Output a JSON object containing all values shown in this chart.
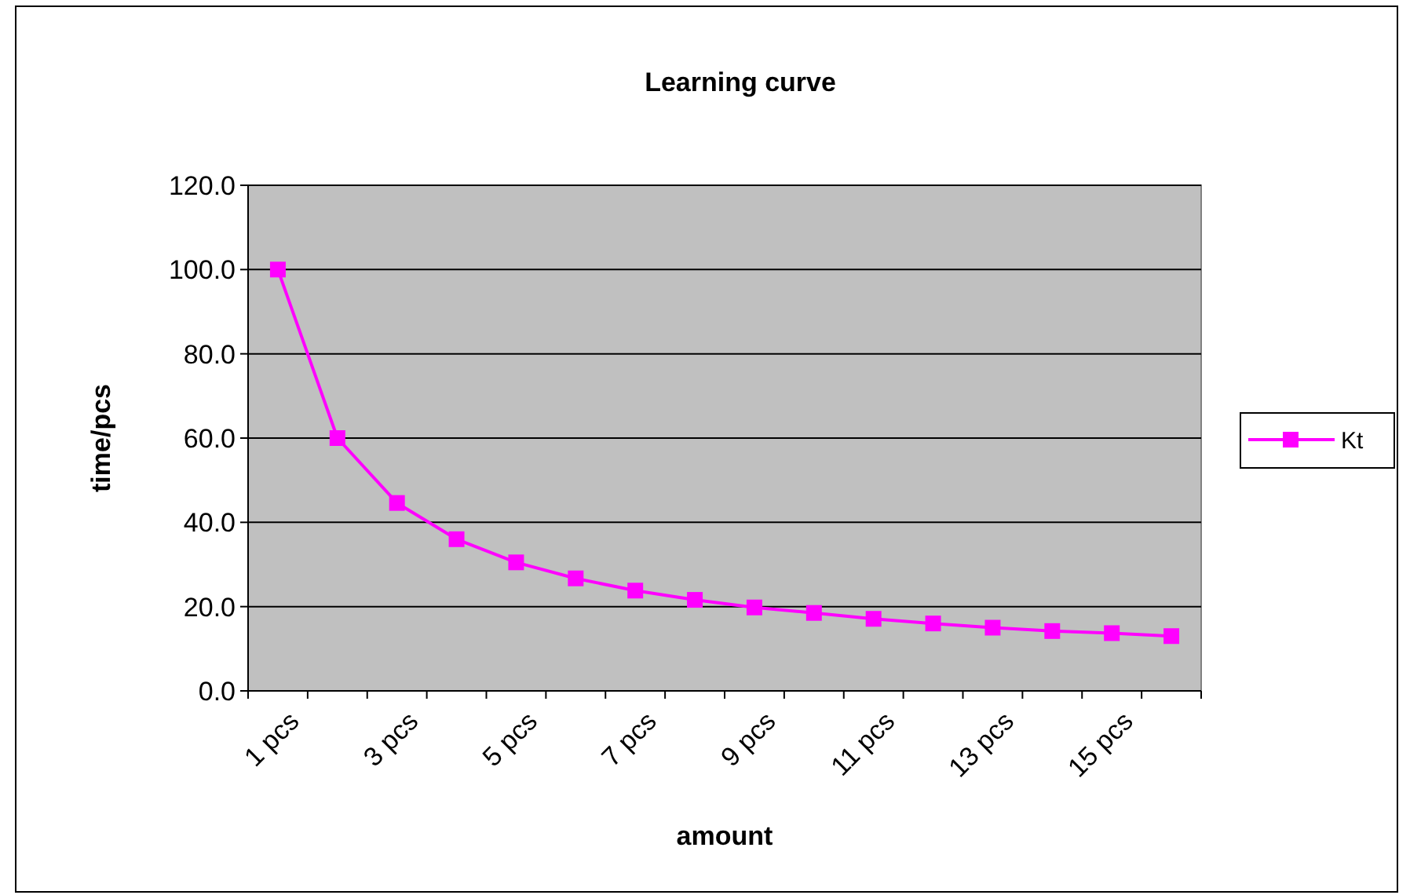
{
  "chart_data": {
    "type": "line",
    "title": "Learning curve",
    "xlabel": "amount",
    "ylabel": "time/pcs",
    "categories": [
      "1 pcs",
      null,
      "3 pcs",
      null,
      "5 pcs",
      null,
      "7 pcs",
      null,
      "9 pcs",
      null,
      "11 pcs",
      null,
      "13 pcs",
      null,
      "15 pcs",
      null
    ],
    "series": [
      {
        "name": "Kt",
        "color": "#ff00ff",
        "values": [
          100,
          60,
          44.6,
          36,
          30.5,
          26.7,
          23.8,
          21.6,
          19.8,
          18.5,
          17.1,
          16,
          15,
          14.2,
          13.7,
          13
        ]
      }
    ],
    "ylim": [
      0,
      120
    ],
    "yticks": [
      {
        "value": 0,
        "label": "0.0"
      },
      {
        "value": 20,
        "label": "20.0"
      },
      {
        "value": 40,
        "label": "40.0"
      },
      {
        "value": 60,
        "label": "60.0"
      },
      {
        "value": 80,
        "label": "80.0"
      },
      {
        "value": 100,
        "label": "100.0"
      },
      {
        "value": 120,
        "label": "120.0"
      }
    ],
    "grid": "y",
    "legend": "right",
    "marker": "square",
    "line_style": "solid"
  }
}
